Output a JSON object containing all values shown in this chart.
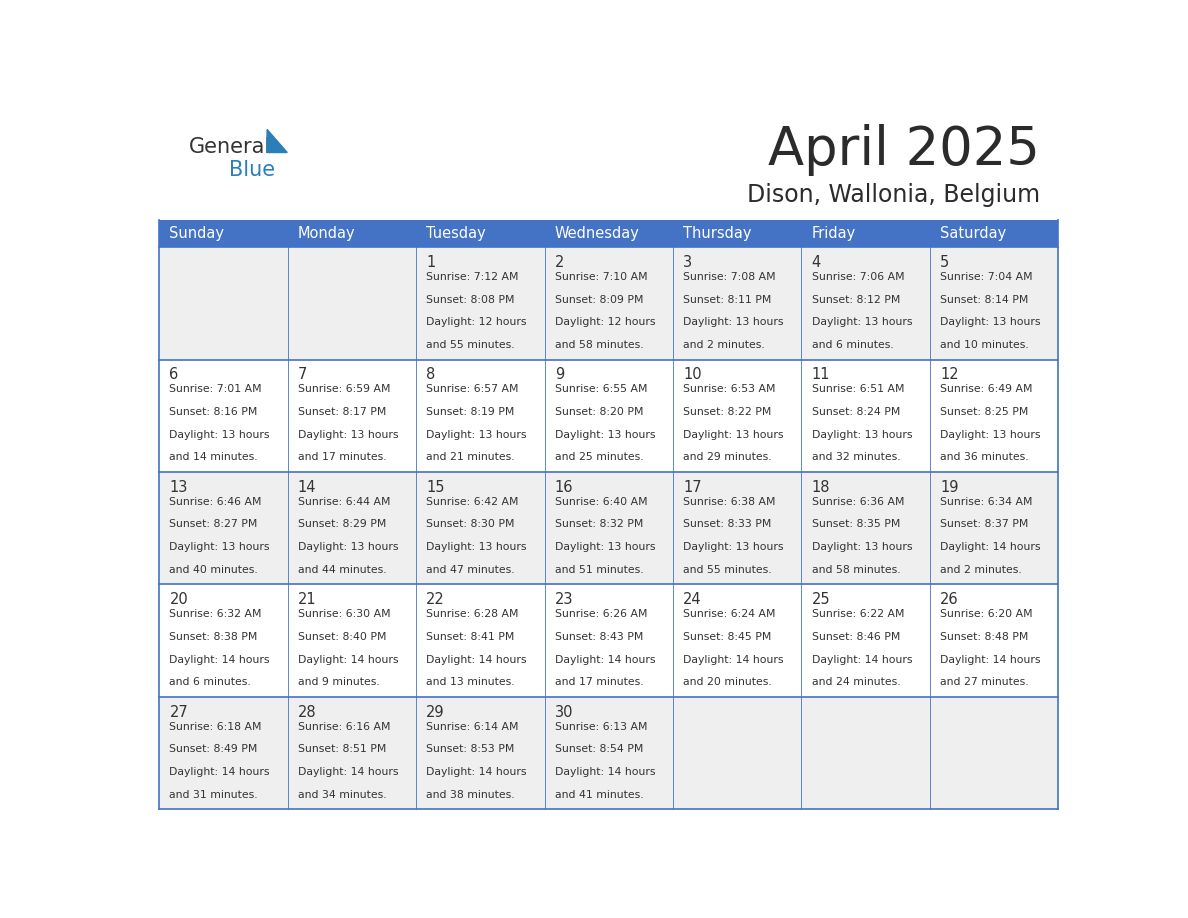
{
  "title": "April 2025",
  "subtitle": "Dison, Wallonia, Belgium",
  "header_color": "#4472C4",
  "header_text_color": "#FFFFFF",
  "row_bg_gray": "#EFEFEF",
  "row_bg_white": "#FFFFFF",
  "border_color": "#4472C4",
  "text_color": "#333333",
  "logo_general_color": "#333333",
  "logo_blue_color": "#2980B9",
  "logo_triangle_color": "#2980B9",
  "days_of_week": [
    "Sunday",
    "Monday",
    "Tuesday",
    "Wednesday",
    "Thursday",
    "Friday",
    "Saturday"
  ],
  "weeks": [
    [
      {
        "day": "",
        "lines": []
      },
      {
        "day": "",
        "lines": []
      },
      {
        "day": "1",
        "lines": [
          "Sunrise: 7:12 AM",
          "Sunset: 8:08 PM",
          "Daylight: 12 hours",
          "and 55 minutes."
        ]
      },
      {
        "day": "2",
        "lines": [
          "Sunrise: 7:10 AM",
          "Sunset: 8:09 PM",
          "Daylight: 12 hours",
          "and 58 minutes."
        ]
      },
      {
        "day": "3",
        "lines": [
          "Sunrise: 7:08 AM",
          "Sunset: 8:11 PM",
          "Daylight: 13 hours",
          "and 2 minutes."
        ]
      },
      {
        "day": "4",
        "lines": [
          "Sunrise: 7:06 AM",
          "Sunset: 8:12 PM",
          "Daylight: 13 hours",
          "and 6 minutes."
        ]
      },
      {
        "day": "5",
        "lines": [
          "Sunrise: 7:04 AM",
          "Sunset: 8:14 PM",
          "Daylight: 13 hours",
          "and 10 minutes."
        ]
      }
    ],
    [
      {
        "day": "6",
        "lines": [
          "Sunrise: 7:01 AM",
          "Sunset: 8:16 PM",
          "Daylight: 13 hours",
          "and 14 minutes."
        ]
      },
      {
        "day": "7",
        "lines": [
          "Sunrise: 6:59 AM",
          "Sunset: 8:17 PM",
          "Daylight: 13 hours",
          "and 17 minutes."
        ]
      },
      {
        "day": "8",
        "lines": [
          "Sunrise: 6:57 AM",
          "Sunset: 8:19 PM",
          "Daylight: 13 hours",
          "and 21 minutes."
        ]
      },
      {
        "day": "9",
        "lines": [
          "Sunrise: 6:55 AM",
          "Sunset: 8:20 PM",
          "Daylight: 13 hours",
          "and 25 minutes."
        ]
      },
      {
        "day": "10",
        "lines": [
          "Sunrise: 6:53 AM",
          "Sunset: 8:22 PM",
          "Daylight: 13 hours",
          "and 29 minutes."
        ]
      },
      {
        "day": "11",
        "lines": [
          "Sunrise: 6:51 AM",
          "Sunset: 8:24 PM",
          "Daylight: 13 hours",
          "and 32 minutes."
        ]
      },
      {
        "day": "12",
        "lines": [
          "Sunrise: 6:49 AM",
          "Sunset: 8:25 PM",
          "Daylight: 13 hours",
          "and 36 minutes."
        ]
      }
    ],
    [
      {
        "day": "13",
        "lines": [
          "Sunrise: 6:46 AM",
          "Sunset: 8:27 PM",
          "Daylight: 13 hours",
          "and 40 minutes."
        ]
      },
      {
        "day": "14",
        "lines": [
          "Sunrise: 6:44 AM",
          "Sunset: 8:29 PM",
          "Daylight: 13 hours",
          "and 44 minutes."
        ]
      },
      {
        "day": "15",
        "lines": [
          "Sunrise: 6:42 AM",
          "Sunset: 8:30 PM",
          "Daylight: 13 hours",
          "and 47 minutes."
        ]
      },
      {
        "day": "16",
        "lines": [
          "Sunrise: 6:40 AM",
          "Sunset: 8:32 PM",
          "Daylight: 13 hours",
          "and 51 minutes."
        ]
      },
      {
        "day": "17",
        "lines": [
          "Sunrise: 6:38 AM",
          "Sunset: 8:33 PM",
          "Daylight: 13 hours",
          "and 55 minutes."
        ]
      },
      {
        "day": "18",
        "lines": [
          "Sunrise: 6:36 AM",
          "Sunset: 8:35 PM",
          "Daylight: 13 hours",
          "and 58 minutes."
        ]
      },
      {
        "day": "19",
        "lines": [
          "Sunrise: 6:34 AM",
          "Sunset: 8:37 PM",
          "Daylight: 14 hours",
          "and 2 minutes."
        ]
      }
    ],
    [
      {
        "day": "20",
        "lines": [
          "Sunrise: 6:32 AM",
          "Sunset: 8:38 PM",
          "Daylight: 14 hours",
          "and 6 minutes."
        ]
      },
      {
        "day": "21",
        "lines": [
          "Sunrise: 6:30 AM",
          "Sunset: 8:40 PM",
          "Daylight: 14 hours",
          "and 9 minutes."
        ]
      },
      {
        "day": "22",
        "lines": [
          "Sunrise: 6:28 AM",
          "Sunset: 8:41 PM",
          "Daylight: 14 hours",
          "and 13 minutes."
        ]
      },
      {
        "day": "23",
        "lines": [
          "Sunrise: 6:26 AM",
          "Sunset: 8:43 PM",
          "Daylight: 14 hours",
          "and 17 minutes."
        ]
      },
      {
        "day": "24",
        "lines": [
          "Sunrise: 6:24 AM",
          "Sunset: 8:45 PM",
          "Daylight: 14 hours",
          "and 20 minutes."
        ]
      },
      {
        "day": "25",
        "lines": [
          "Sunrise: 6:22 AM",
          "Sunset: 8:46 PM",
          "Daylight: 14 hours",
          "and 24 minutes."
        ]
      },
      {
        "day": "26",
        "lines": [
          "Sunrise: 6:20 AM",
          "Sunset: 8:48 PM",
          "Daylight: 14 hours",
          "and 27 minutes."
        ]
      }
    ],
    [
      {
        "day": "27",
        "lines": [
          "Sunrise: 6:18 AM",
          "Sunset: 8:49 PM",
          "Daylight: 14 hours",
          "and 31 minutes."
        ]
      },
      {
        "day": "28",
        "lines": [
          "Sunrise: 6:16 AM",
          "Sunset: 8:51 PM",
          "Daylight: 14 hours",
          "and 34 minutes."
        ]
      },
      {
        "day": "29",
        "lines": [
          "Sunrise: 6:14 AM",
          "Sunset: 8:53 PM",
          "Daylight: 14 hours",
          "and 38 minutes."
        ]
      },
      {
        "day": "30",
        "lines": [
          "Sunrise: 6:13 AM",
          "Sunset: 8:54 PM",
          "Daylight: 14 hours",
          "and 41 minutes."
        ]
      },
      {
        "day": "",
        "lines": []
      },
      {
        "day": "",
        "lines": []
      },
      {
        "day": "",
        "lines": []
      }
    ]
  ]
}
